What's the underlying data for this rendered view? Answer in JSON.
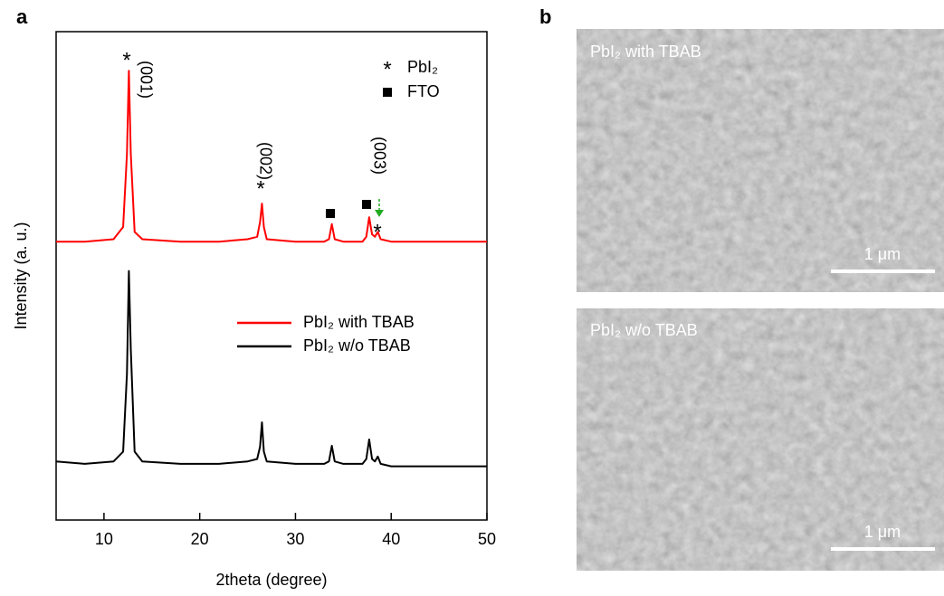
{
  "panel_labels": [
    "a",
    "b"
  ],
  "chart_data": {
    "type": "line",
    "x_label": "2theta (degree)",
    "y_label": "Intensity (a. u.)",
    "x": [
      5,
      8,
      11,
      12,
      12.4,
      12.6,
      12.8,
      13.2,
      14,
      18,
      22,
      25,
      26,
      26.3,
      26.5,
      26.7,
      27,
      30,
      33,
      33.5,
      33.8,
      34.1,
      35,
      37,
      37.4,
      37.7,
      38,
      38.3,
      38.6,
      38.9,
      40,
      45,
      50
    ],
    "series": [
      {
        "name": "PbI₂ with TBAB",
        "color": "#ff0000",
        "values": [
          57,
          57,
          57.5,
          60,
          75,
          92,
          75,
          59,
          57.5,
          57,
          57,
          57.5,
          58,
          61,
          64.8,
          60,
          57.5,
          57,
          57,
          57.5,
          60.6,
          57.5,
          57,
          57,
          58,
          62,
          58.5,
          58,
          59,
          57.5,
          57,
          57,
          57
        ]
      },
      {
        "name": "PbI₂ w/o TBAB",
        "color": "#000000",
        "values": [
          12,
          11.5,
          12,
          14,
          30,
          51,
          35,
          14,
          12,
          11.5,
          11.5,
          12,
          12.5,
          15,
          20,
          14,
          12,
          11.5,
          11.5,
          12,
          15.2,
          12,
          11.5,
          11.5,
          12.5,
          16.5,
          12.5,
          12,
          13,
          11.5,
          11,
          11,
          11
        ]
      }
    ],
    "xlim": [
      5,
      50
    ],
    "ylim": [
      0,
      100
    ],
    "xticks": [
      10,
      20,
      30,
      40,
      50
    ],
    "annotations": [
      "*",
      "(001)",
      "*",
      "(002)",
      "(003)",
      "*"
    ],
    "marker_legend": [
      {
        "symbol": "*",
        "text": "PbI₂"
      },
      {
        "text": "FTO"
      }
    ]
  },
  "images": [
    {
      "caption": "PbI₂ with TBAB",
      "scale_bar": "1 μm"
    },
    {
      "caption": "PbI₂ w/o TBAB",
      "scale_bar": "1 μm"
    }
  ]
}
